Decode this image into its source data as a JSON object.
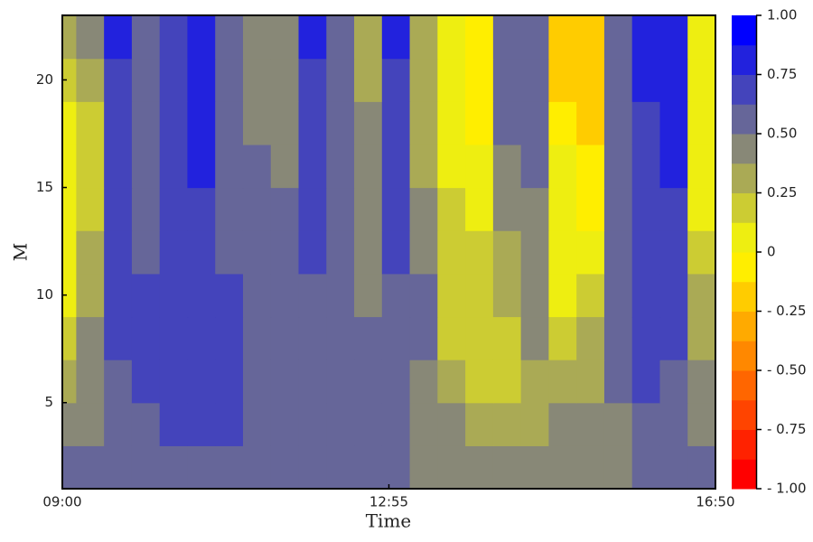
{
  "chart_data": {
    "type": "contour",
    "xlabel": "Time",
    "ylabel": "M",
    "xlim": [
      540,
      1010
    ],
    "xticks": [
      {
        "value": 540,
        "label": "09:00"
      },
      {
        "value": 775,
        "label": "12:55"
      },
      {
        "value": 1010,
        "label": "16:50"
      }
    ],
    "ylim": [
      1,
      23
    ],
    "yticks": [
      5,
      10,
      15,
      20
    ],
    "x": [
      540,
      560,
      580,
      600,
      620,
      640,
      660,
      680,
      700,
      720,
      740,
      760,
      780,
      800,
      820,
      840,
      860,
      880,
      900,
      920,
      940,
      960,
      980,
      1000
    ],
    "y": [
      2,
      4,
      6,
      8,
      10,
      12,
      14,
      16,
      18,
      20,
      22
    ],
    "z": [
      [
        0.56,
        0.56,
        0.56,
        0.56,
        0.56,
        0.56,
        0.56,
        0.56,
        0.56,
        0.56,
        0.56,
        0.56,
        0.56,
        0.44,
        0.44,
        0.44,
        0.44,
        0.44,
        0.44,
        0.44,
        0.44,
        0.56,
        0.56,
        0.56
      ],
      [
        0.44,
        0.44,
        0.56,
        0.56,
        0.69,
        0.69,
        0.69,
        0.56,
        0.56,
        0.56,
        0.56,
        0.56,
        0.56,
        0.44,
        0.44,
        0.31,
        0.31,
        0.31,
        0.44,
        0.44,
        0.44,
        0.56,
        0.56,
        0.44
      ],
      [
        0.31,
        0.44,
        0.56,
        0.69,
        0.69,
        0.69,
        0.69,
        0.56,
        0.56,
        0.56,
        0.56,
        0.56,
        0.56,
        0.44,
        0.31,
        0.19,
        0.19,
        0.31,
        0.31,
        0.31,
        0.56,
        0.69,
        0.56,
        0.44
      ],
      [
        0.19,
        0.44,
        0.69,
        0.69,
        0.69,
        0.69,
        0.69,
        0.56,
        0.56,
        0.56,
        0.56,
        0.56,
        0.56,
        0.56,
        0.19,
        0.19,
        0.19,
        0.44,
        0.19,
        0.31,
        0.56,
        0.69,
        0.69,
        0.31
      ],
      [
        0.06,
        0.31,
        0.69,
        0.69,
        0.69,
        0.69,
        0.69,
        0.56,
        0.56,
        0.56,
        0.56,
        0.44,
        0.56,
        0.56,
        0.19,
        0.19,
        0.31,
        0.44,
        0.06,
        0.19,
        0.56,
        0.69,
        0.69,
        0.31
      ],
      [
        0.06,
        0.31,
        0.69,
        0.56,
        0.69,
        0.69,
        0.56,
        0.56,
        0.56,
        0.69,
        0.56,
        0.44,
        0.69,
        0.44,
        0.19,
        0.19,
        0.31,
        0.44,
        0.06,
        0.06,
        0.56,
        0.69,
        0.69,
        0.19
      ],
      [
        0.06,
        0.19,
        0.69,
        0.56,
        0.69,
        0.69,
        0.56,
        0.56,
        0.56,
        0.69,
        0.56,
        0.44,
        0.69,
        0.44,
        0.19,
        0.06,
        0.44,
        0.44,
        0.06,
        -0.06,
        0.56,
        0.69,
        0.69,
        0.06
      ],
      [
        0.06,
        0.19,
        0.69,
        0.56,
        0.69,
        0.81,
        0.56,
        0.56,
        0.44,
        0.69,
        0.56,
        0.44,
        0.69,
        0.31,
        0.06,
        0.06,
        0.44,
        0.56,
        0.06,
        -0.06,
        0.56,
        0.69,
        0.81,
        0.06
      ],
      [
        0.06,
        0.19,
        0.69,
        0.56,
        0.69,
        0.81,
        0.56,
        0.44,
        0.44,
        0.69,
        0.56,
        0.44,
        0.69,
        0.31,
        0.06,
        -0.06,
        0.56,
        0.56,
        -0.06,
        -0.19,
        0.56,
        0.69,
        0.81,
        0.06
      ],
      [
        0.19,
        0.31,
        0.69,
        0.56,
        0.69,
        0.81,
        0.56,
        0.44,
        0.44,
        0.69,
        0.56,
        0.31,
        0.69,
        0.31,
        0.06,
        -0.06,
        0.56,
        0.56,
        -0.19,
        -0.19,
        0.56,
        0.81,
        0.81,
        0.06
      ],
      [
        0.31,
        0.44,
        0.81,
        0.56,
        0.69,
        0.81,
        0.56,
        0.44,
        0.44,
        0.81,
        0.56,
        0.31,
        0.81,
        0.31,
        0.06,
        -0.06,
        0.56,
        0.56,
        -0.19,
        -0.19,
        0.56,
        0.81,
        0.81,
        0.06
      ]
    ],
    "levels": [
      -1,
      -0.875,
      -0.75,
      -0.625,
      -0.5,
      -0.375,
      -0.25,
      -0.125,
      0,
      0.125,
      0.25,
      0.375,
      0.5,
      0.625,
      0.75,
      0.875,
      1
    ],
    "colors": [
      "#ff0000",
      "#ff2200",
      "#ff4400",
      "#ff6600",
      "#ff8800",
      "#ffaa00",
      "#ffcc00",
      "#ffee00",
      "#eeee11",
      "#cccc33",
      "#aaaa55",
      "#888877",
      "#666699",
      "#4444bb",
      "#2222dd",
      "#0000ff"
    ],
    "colorbar_ticks": [
      {
        "value": 1,
        "label": "1.00"
      },
      0.75,
      {
        "value": 0.5,
        "label": "0.50"
      },
      0.25,
      0,
      {
        "value": -0.25,
        "label": "- 0.25"
      },
      {
        "value": -0.5,
        "label": "- 0.50"
      },
      {
        "value": -0.75,
        "label": "- 0.75"
      },
      {
        "value": -1,
        "label": "- 1.00"
      }
    ]
  }
}
